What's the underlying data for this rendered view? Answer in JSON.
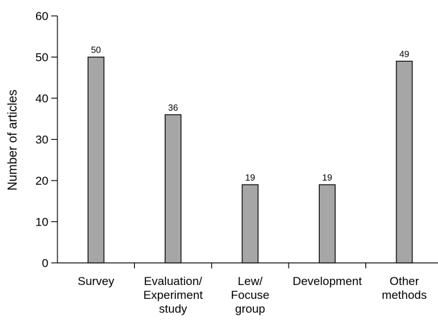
{
  "chart_data": {
    "type": "bar",
    "categories": [
      [
        "Survey"
      ],
      [
        "Evaluation/",
        "Experiment",
        "study"
      ],
      [
        "Lew/",
        "Focuse",
        "group"
      ],
      [
        "Development"
      ],
      [
        "Other",
        "methods"
      ]
    ],
    "values": [
      50,
      36,
      19,
      19,
      49
    ],
    "data_labels": [
      "50",
      "36",
      "19",
      "19",
      "49"
    ],
    "title": "",
    "xlabel": "",
    "ylabel": "Number of articles",
    "ylim": [
      0,
      60
    ],
    "yticks": [
      0,
      10,
      20,
      30,
      40,
      50,
      60
    ],
    "bar_color": "#a6a6a6",
    "grid": false,
    "legend": "none"
  }
}
